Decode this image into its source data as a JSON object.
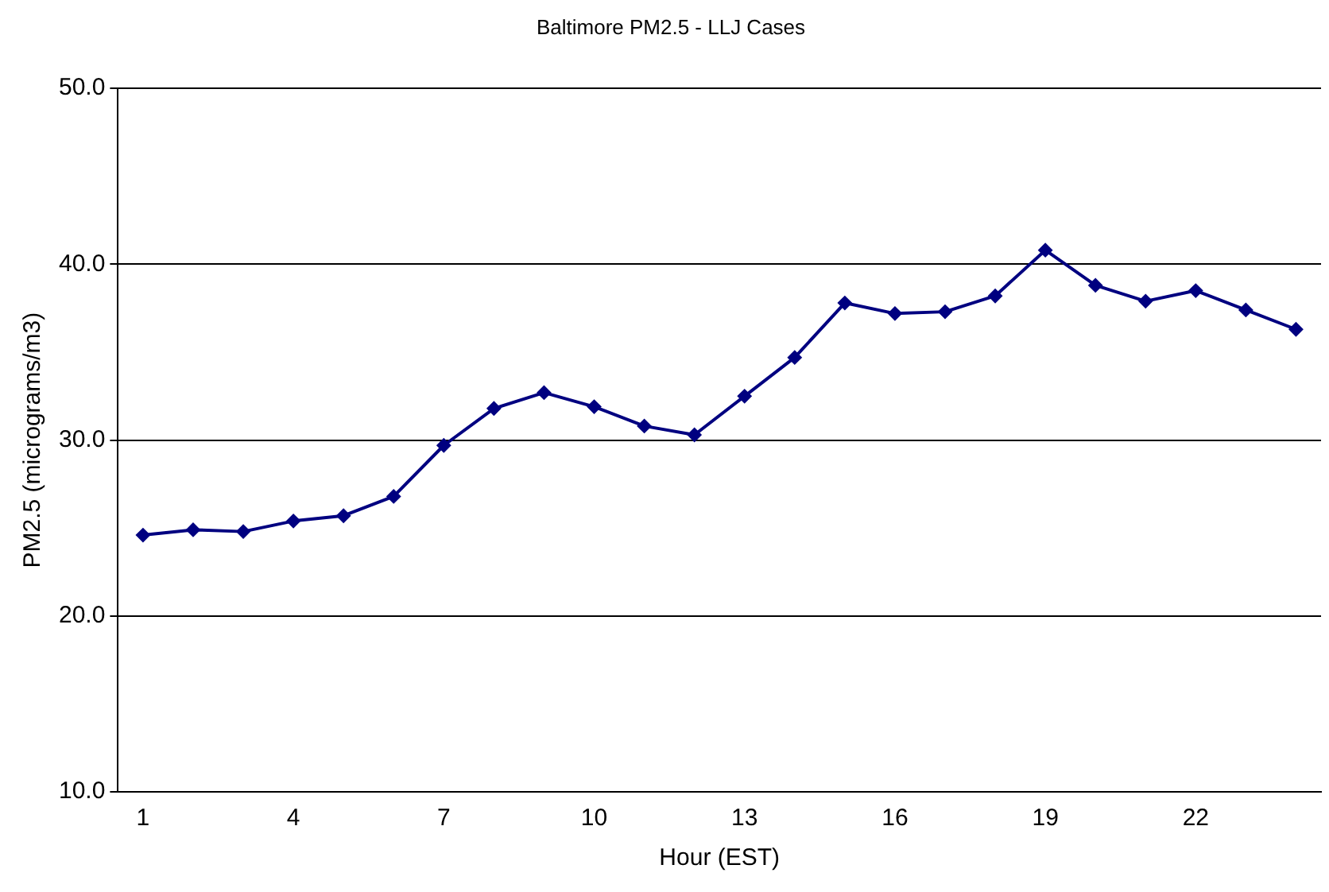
{
  "chart_data": {
    "type": "line",
    "title": "Baltimore PM2.5 - LLJ Cases",
    "xlabel": "Hour (EST)",
    "ylabel": "PM2.5 (micrograms/m3)",
    "categories": [
      "1",
      null,
      null,
      "4",
      null,
      null,
      "7",
      null,
      null,
      "10",
      null,
      null,
      "13",
      null,
      null,
      "16",
      null,
      null,
      "19",
      null,
      null,
      "22",
      null,
      null
    ],
    "series": [
      {
        "color": "#000080",
        "values": [
          24.6,
          24.9,
          24.8,
          25.4,
          25.7,
          26.8,
          29.7,
          31.8,
          32.7,
          31.9,
          30.8,
          30.3,
          32.5,
          34.7,
          37.8,
          37.2,
          37.3,
          38.2,
          40.8,
          38.8,
          37.9,
          38.5,
          37.4,
          36.3
        ]
      }
    ],
    "ylim": [
      10,
      50
    ],
    "yticks": [
      {
        "value": 10,
        "label": "10.0"
      },
      {
        "value": 20,
        "label": "20.0"
      },
      {
        "value": 30,
        "label": "30.0"
      },
      {
        "value": 40,
        "label": "40.0"
      },
      {
        "value": 50,
        "label": "50.0"
      }
    ],
    "grid": "y",
    "legend": false,
    "marker": "diamond",
    "line_style": "solid"
  }
}
